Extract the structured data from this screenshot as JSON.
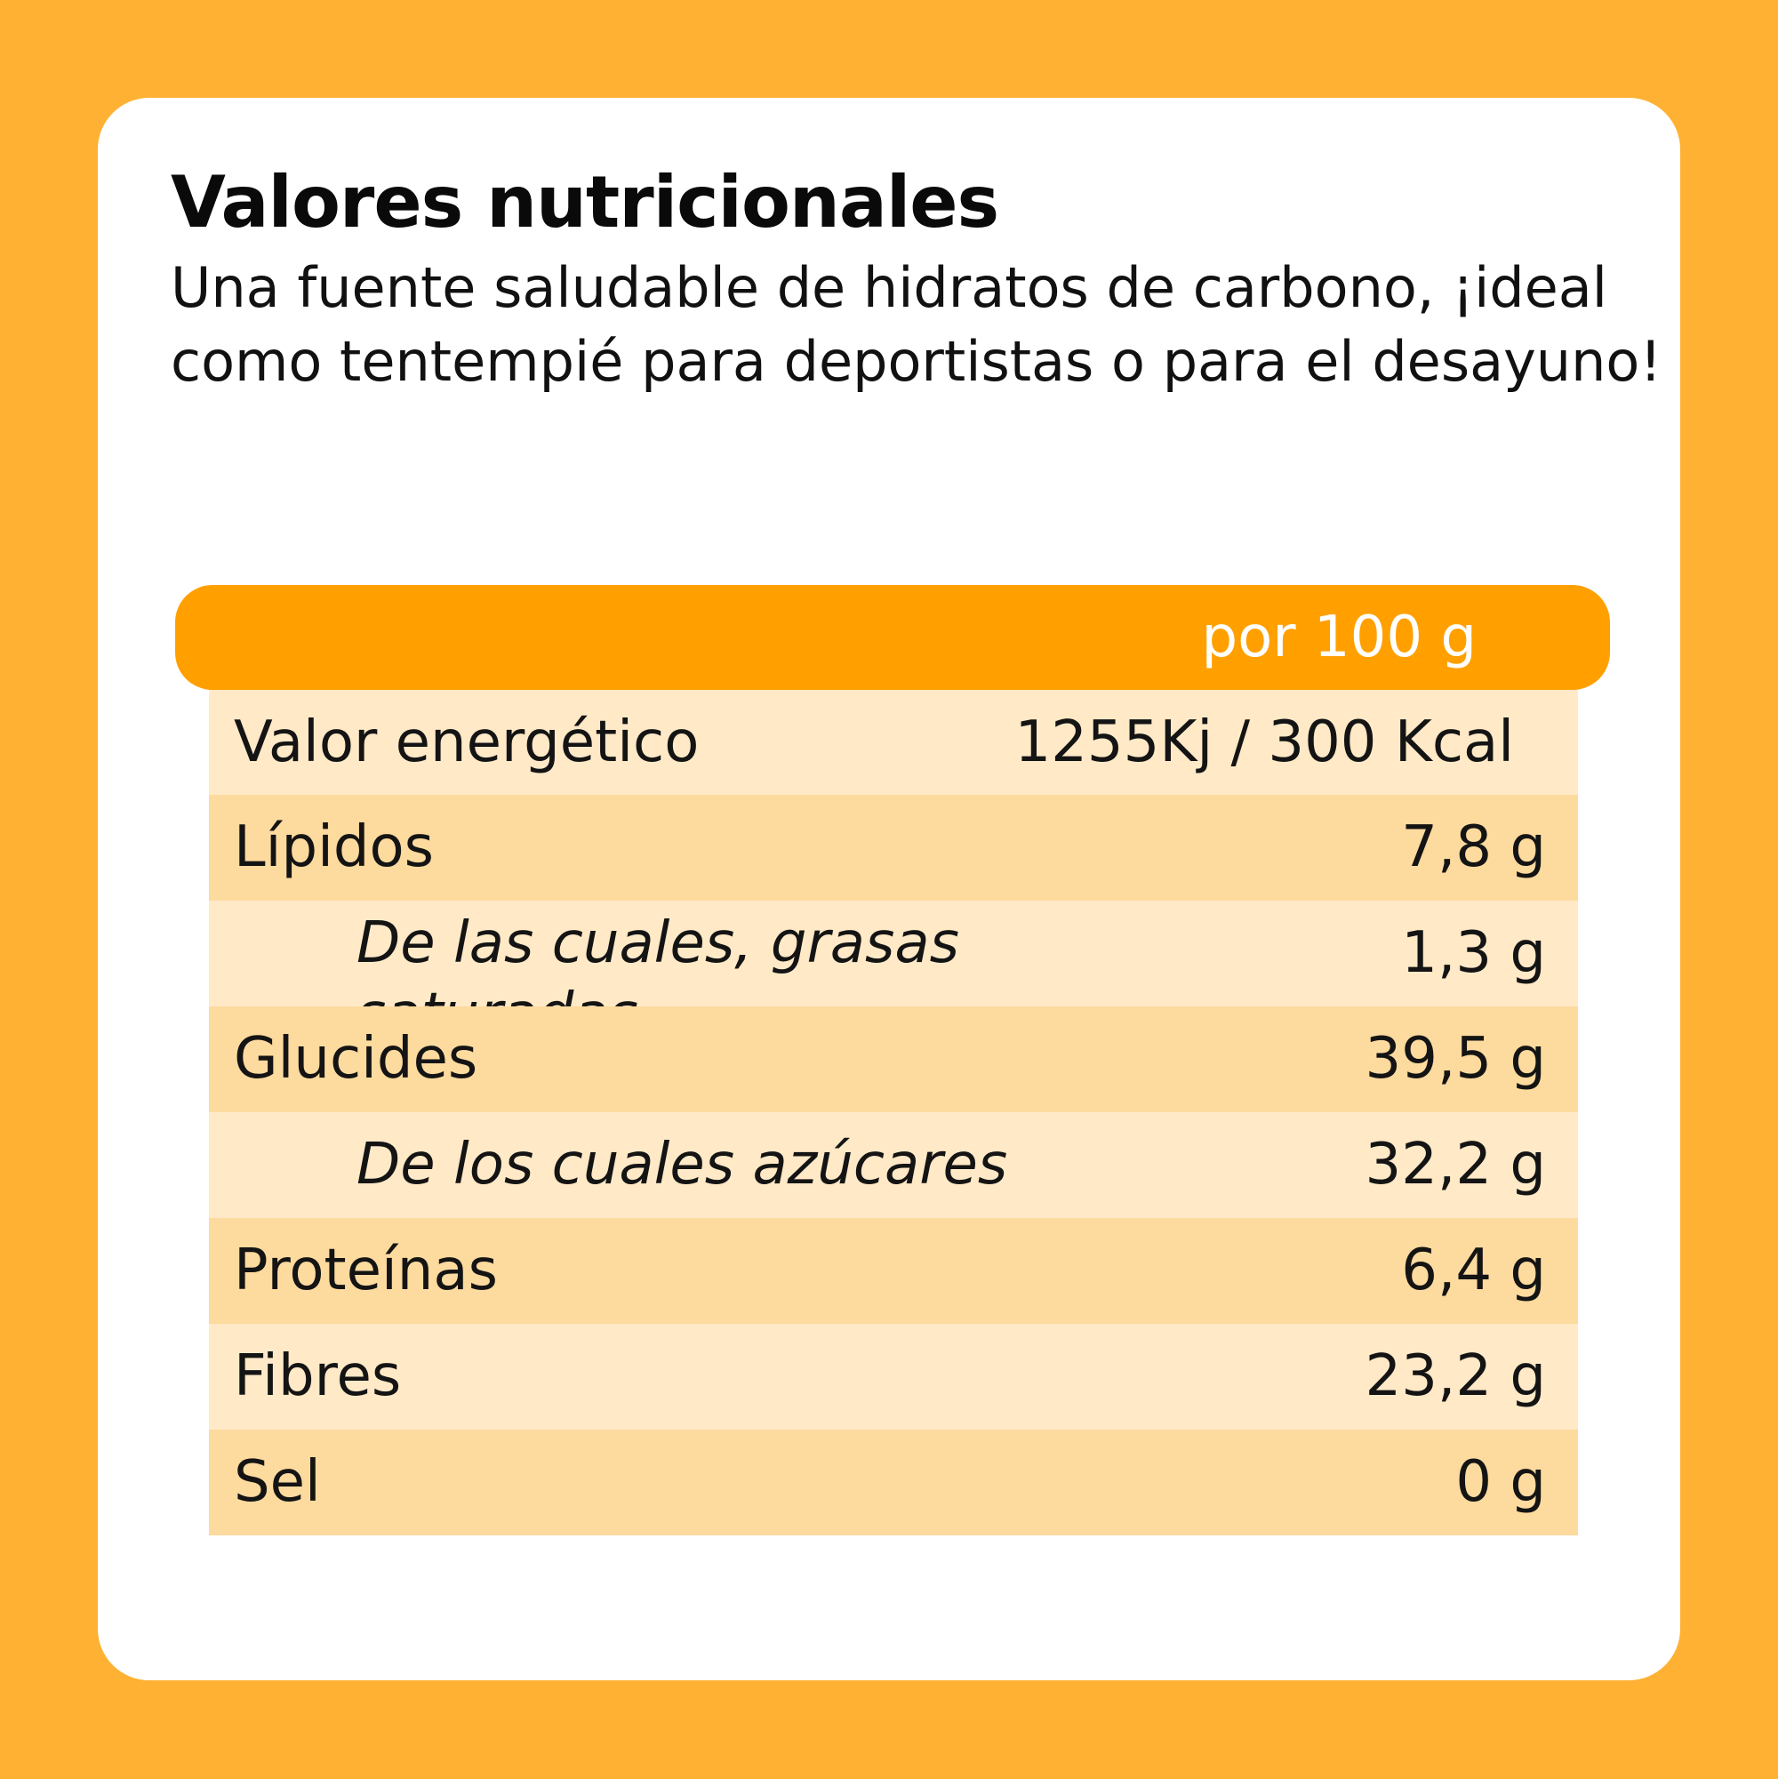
{
  "card": {
    "title": "Valores nutricionales",
    "subtitle": "Una fuente saludable de hidratos de carbono, ¡ideal como tentempié para deportistas o para el desayuno!"
  },
  "table": {
    "header": "por 100 g",
    "rows": [
      {
        "label": "Valor energético",
        "value": "1255Kj / 300 Kcal"
      },
      {
        "label": "Lípidos",
        "value": "7,8 g"
      },
      {
        "label": "De las cuales, grasas saturadas",
        "value": "1,3 g"
      },
      {
        "label": "Glucides",
        "value": "39,5 g"
      },
      {
        "label": "De los cuales azúcares",
        "value": "32,2 g"
      },
      {
        "label": "Proteínas",
        "value": "6,4 g"
      },
      {
        "label": "Fibres",
        "value": "23,2 g"
      },
      {
        "label": "Sel",
        "value": "0 g"
      }
    ]
  },
  "colors": {
    "background": "#FFB133",
    "header": "#FFA000",
    "row_light": "#FFE9C7",
    "row_dark": "#FDDA9E"
  }
}
